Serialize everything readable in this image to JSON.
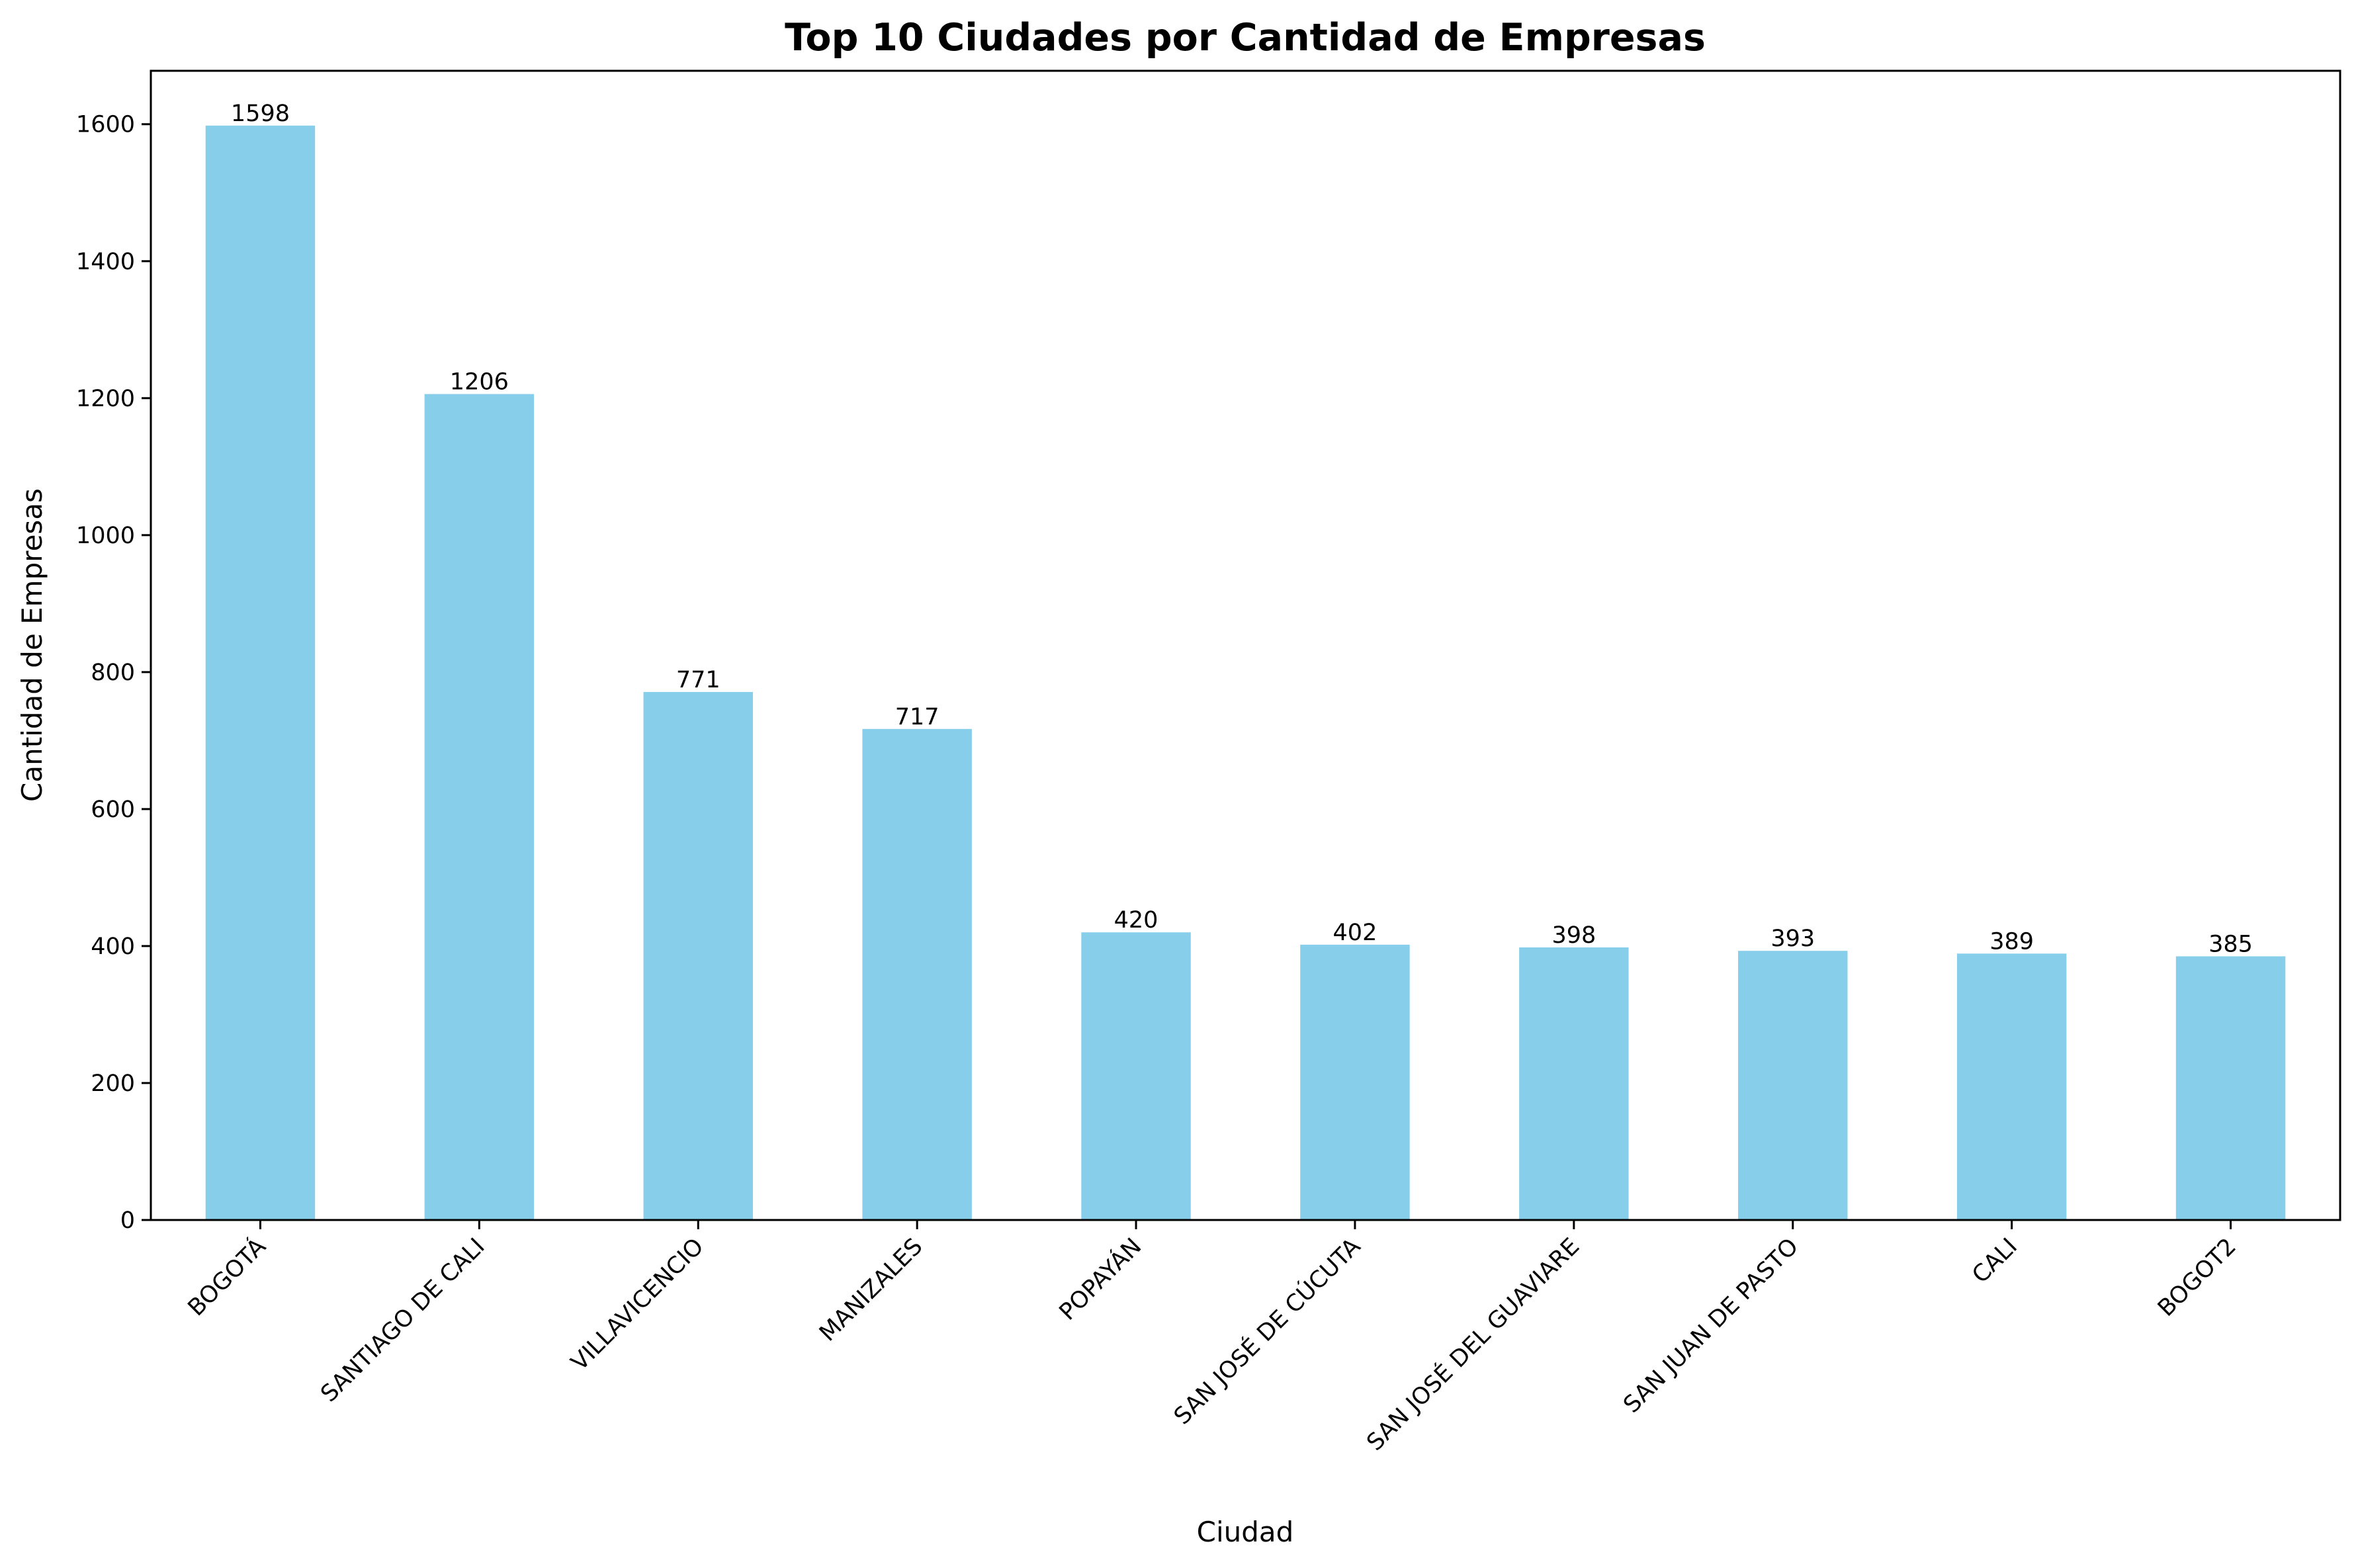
{
  "chart_data": {
    "type": "bar",
    "title": "Top 10 Ciudades por Cantidad de Empresas",
    "xlabel": "Ciudad",
    "ylabel": "Cantidad de Empresas",
    "categories": [
      "BOGOTÁ",
      "SANTIAGO DE CALI",
      "VILLAVICENCIO",
      "MANIZALES",
      "POPAYÁN",
      "SAN JOSÉ DE CÚCUTA",
      "SAN JOSÉ DEL GUAVIARE",
      "SAN JUAN DE PASTO",
      "CALI",
      "BOGOT2"
    ],
    "values": [
      1598,
      1206,
      771,
      717,
      420,
      402,
      398,
      393,
      389,
      385
    ],
    "ylim": [
      0,
      1678
    ],
    "yticks": [
      0,
      200,
      400,
      600,
      800,
      1000,
      1200,
      1400,
      1600
    ],
    "grid": false,
    "bar_color": "#87ceeb"
  }
}
